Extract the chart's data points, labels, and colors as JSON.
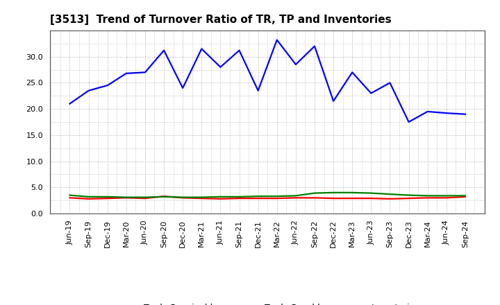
{
  "title": "[3513]  Trend of Turnover Ratio of TR, TP and Inventories",
  "x_labels": [
    "Jun-19",
    "Sep-19",
    "Dec-19",
    "Mar-20",
    "Jun-20",
    "Sep-20",
    "Dec-20",
    "Mar-21",
    "Jun-21",
    "Sep-21",
    "Dec-21",
    "Mar-22",
    "Jun-22",
    "Sep-22",
    "Dec-22",
    "Mar-23",
    "Jun-23",
    "Sep-23",
    "Dec-23",
    "Mar-24",
    "Jun-24",
    "Sep-24"
  ],
  "trade_receivables": [
    3.0,
    2.8,
    2.9,
    3.0,
    2.9,
    3.3,
    3.0,
    2.9,
    2.8,
    2.9,
    2.9,
    2.9,
    3.0,
    3.0,
    2.9,
    2.9,
    2.9,
    2.8,
    2.9,
    3.0,
    3.0,
    3.2
  ],
  "trade_payables": [
    21.0,
    23.5,
    24.5,
    26.8,
    27.0,
    31.2,
    24.0,
    31.5,
    28.0,
    31.2,
    23.5,
    33.2,
    28.5,
    32.0,
    21.5,
    27.0,
    23.0,
    25.0,
    17.5,
    19.5,
    19.2,
    19.0
  ],
  "inventories": [
    3.5,
    3.2,
    3.2,
    3.1,
    3.1,
    3.2,
    3.1,
    3.1,
    3.2,
    3.2,
    3.3,
    3.3,
    3.4,
    3.9,
    4.0,
    4.0,
    3.9,
    3.7,
    3.5,
    3.4,
    3.4,
    3.4
  ],
  "ylim": [
    0.0,
    35.0
  ],
  "yticks": [
    0.0,
    5.0,
    10.0,
    15.0,
    20.0,
    25.0,
    30.0
  ],
  "color_tr": "#ff0000",
  "color_tp": "#0000ff",
  "color_inv": "#008000",
  "bg_color": "#ffffff",
  "grid_color": "#aaaaaa",
  "title_fontsize": 11,
  "label_fontsize": 8,
  "legend_fontsize": 9,
  "linewidth": 1.6
}
